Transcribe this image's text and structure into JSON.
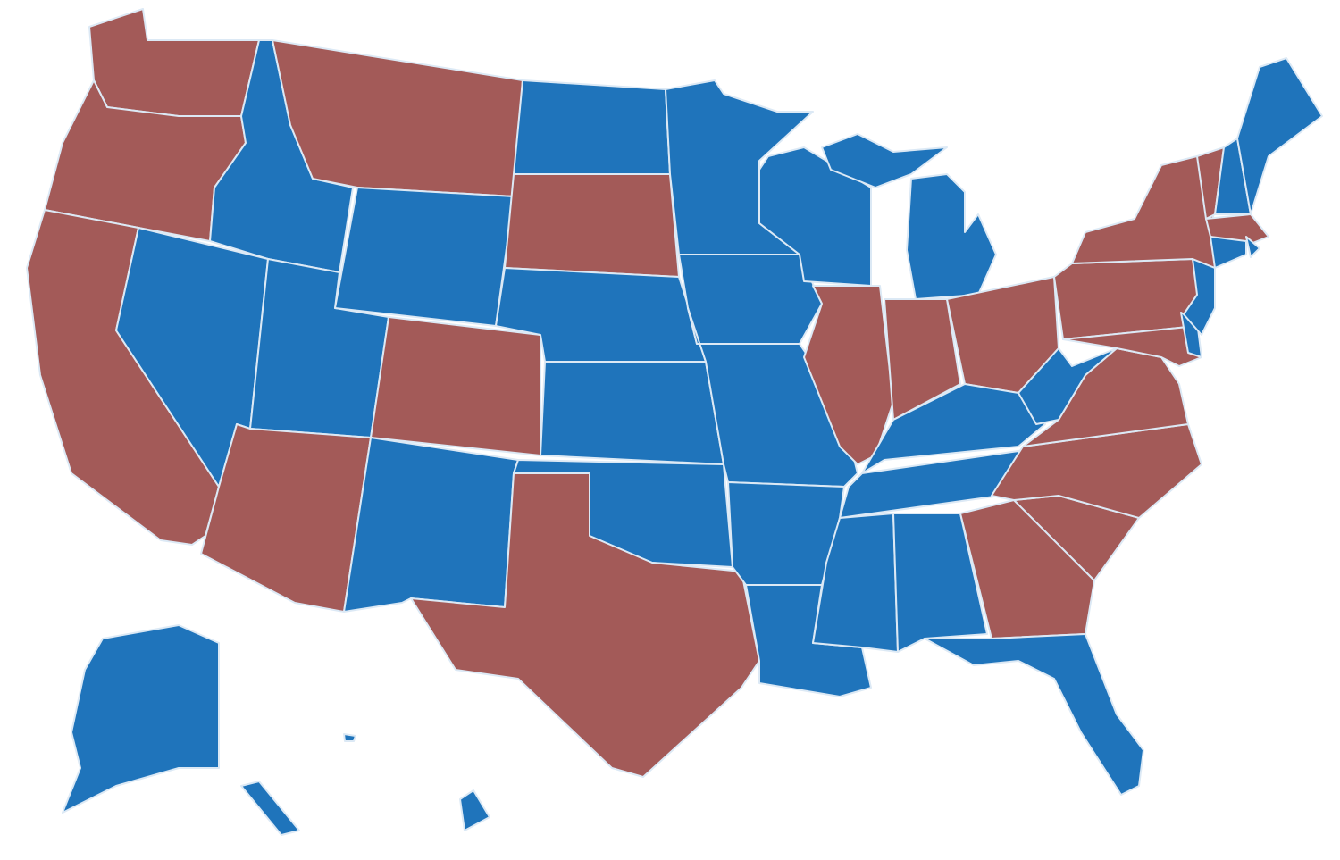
{
  "map": {
    "regions": [
      {
        "fill": "#a35a58"
      },
      {
        "fill": "#a35a58"
      },
      {
        "fill": "#a35a58"
      },
      {
        "fill": "#1f74bb"
      },
      {
        "fill": "#a35a58"
      },
      {
        "fill": "#1f74bb"
      },
      {
        "fill": "#1f74bb"
      },
      {
        "fill": "#1f74bb"
      },
      {
        "fill": "#a35a58"
      },
      {
        "fill": "#a35a58"
      },
      {
        "fill": "#1f74bb"
      },
      {
        "fill": "#1f74bb"
      },
      {
        "fill": "#a35a58"
      },
      {
        "fill": "#1f74bb"
      },
      {
        "fill": "#1f74bb"
      },
      {
        "fill": "#1f74bb"
      },
      {
        "fill": "#a35a58"
      },
      {
        "fill": "#1f74bb"
      },
      {
        "fill": "#1f74bb"
      },
      {
        "fill": "#1f74bb"
      },
      {
        "fill": "#1f74bb"
      },
      {
        "fill": "#a35a58"
      },
      {
        "fill": "#1f74bb"
      },
      {
        "fill": "#1f74bb"
      },
      {
        "fill": "#a35a58"
      },
      {
        "fill": "#a35a58"
      },
      {
        "fill": "#1f74bb"
      },
      {
        "fill": "#1f74bb"
      },
      {
        "fill": "#1f74bb"
      },
      {
        "fill": "#1f74bb"
      },
      {
        "fill": "#1f74bb"
      },
      {
        "fill": "#1f74bb"
      },
      {
        "fill": "#a35a58"
      },
      {
        "fill": "#1f74bb"
      },
      {
        "fill": "#a35a58"
      },
      {
        "fill": "#a35a58"
      },
      {
        "fill": "#a35a58"
      },
      {
        "fill": "#1f74bb"
      },
      {
        "fill": "#a35a58"
      },
      {
        "fill": "#a35a58"
      },
      {
        "fill": "#1f74bb"
      },
      {
        "fill": "#1f74bb"
      },
      {
        "fill": "#a35a58"
      },
      {
        "fill": "#a35a58"
      },
      {
        "fill": "#1f74bb"
      },
      {
        "fill": "#1f74bb"
      },
      {
        "fill": "#a35a58"
      },
      {
        "fill": "#1f74bb"
      },
      {
        "fill": "#1f74bb"
      },
      {
        "fill": "#1f74bb"
      },
      {
        "fill": "#1f74bb"
      },
      {
        "fill": "#1f74bb"
      },
      {
        "fill": "#1f74bb"
      }
    ]
  }
}
